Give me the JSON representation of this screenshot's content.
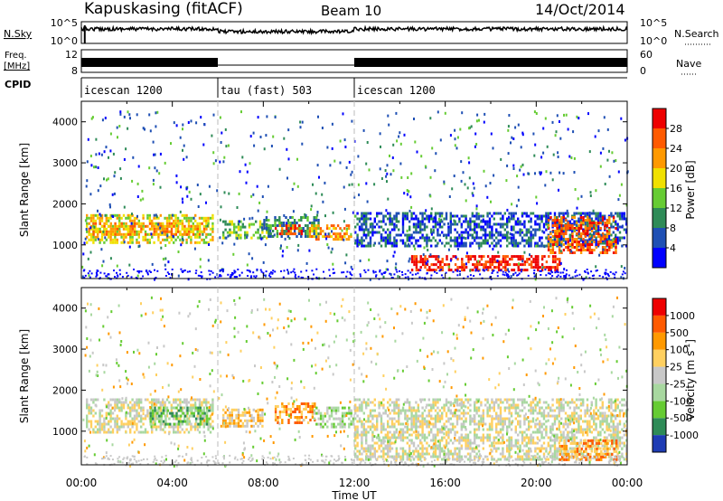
{
  "header": {
    "station": "Kapuskasing (fitACF)",
    "beam": "Beam 10",
    "date": "14/Oct/2014"
  },
  "nsky_panel": {
    "label": "N.Sky",
    "right_label": "N.Search",
    "left_ticks": [
      "10^5",
      "10^0"
    ],
    "right_ticks": [
      "10^5",
      "10^0"
    ]
  },
  "freq_panel": {
    "label_line1": "Freq.",
    "label_line2": "[MHz]",
    "left_ticks": [
      "12",
      "8"
    ],
    "right_ticks": [
      "60",
      "0"
    ],
    "right_label": "Nave"
  },
  "cpid_panel": {
    "label": "CPID",
    "segments": [
      {
        "name": "icescan 1200",
        "start_h": 0,
        "end_h": 6
      },
      {
        "name": "tau (fast) 503",
        "start_h": 6,
        "end_h": 12
      },
      {
        "name": "icescan 1200",
        "start_h": 12,
        "end_h": 24
      }
    ]
  },
  "x_axis": {
    "label": "Time UT",
    "ticks": [
      "00:00",
      "04:00",
      "08:00",
      "12:00",
      "16:00",
      "20:00",
      "00:00"
    ]
  },
  "power_panel": {
    "ylabel": "Slant Range [km]",
    "yticks": [
      "4000",
      "3000",
      "2000",
      "1000"
    ],
    "colorbar_label": "Power [dB]",
    "colorbar_ticks": [
      "28",
      "24",
      "20",
      "16",
      "12",
      "8",
      "4"
    ],
    "colors": [
      "#0000ff",
      "#1e4fb4",
      "#2e8b57",
      "#66cc33",
      "#f0e000",
      "#ff9900",
      "#ff5a00",
      "#ee0000"
    ]
  },
  "velocity_panel": {
    "ylabel": "Slant Range [km]",
    "yticks": [
      "4000",
      "3000",
      "2000",
      "1000"
    ],
    "colorbar_label": "Velocity [m s",
    "colorbar_label_sup": "-1",
    "colorbar_label_end": "]",
    "colorbar_ticks": [
      "1000",
      "500",
      "100",
      "25",
      "-25",
      "-100",
      "-500",
      "-1000"
    ],
    "colors": [
      "#1e3cb4",
      "#2e8b57",
      "#66cc33",
      "#a8d8a0",
      "#c8c8c8",
      "#ffd060",
      "#ff9900",
      "#ff5a00",
      "#ee0000"
    ]
  },
  "chart_data": {
    "type": "heatmap",
    "x_range_hours": [
      0,
      24
    ],
    "y_range_km": [
      180,
      4500
    ],
    "power_regions": [
      {
        "t0": 0.2,
        "t1": 5.8,
        "r0": 1050,
        "r1": 1750,
        "level": 4
      },
      {
        "t0": 0.3,
        "t1": 5.5,
        "r0": 1250,
        "r1": 1550,
        "level": 5
      },
      {
        "t0": 6.2,
        "t1": 8.2,
        "r0": 1150,
        "r1": 1600,
        "level": 3
      },
      {
        "t0": 8.0,
        "t1": 10.5,
        "r0": 1200,
        "r1": 1700,
        "level": 2
      },
      {
        "t0": 8.5,
        "t1": 9.7,
        "r0": 1300,
        "r1": 1500,
        "level": 6
      },
      {
        "t0": 10.0,
        "t1": 12.0,
        "r0": 1150,
        "r1": 1500,
        "level": 5
      },
      {
        "t0": 12.0,
        "t1": 24.0,
        "r0": 1000,
        "r1": 1800,
        "level": 1
      },
      {
        "t0": 14.5,
        "t1": 21.0,
        "r0": 400,
        "r1": 750,
        "level": 7
      },
      {
        "t0": 20.5,
        "t1": 23.5,
        "r0": 800,
        "r1": 1700,
        "level": 6
      }
    ],
    "velocity_regions": [
      {
        "t0": 0.2,
        "t1": 5.8,
        "r0": 1000,
        "r1": 1800,
        "level": 4
      },
      {
        "t0": 3.0,
        "t1": 5.6,
        "r0": 1200,
        "r1": 1600,
        "level": 2
      },
      {
        "t0": 6.2,
        "t1": 8.0,
        "r0": 1150,
        "r1": 1550,
        "level": 5
      },
      {
        "t0": 8.5,
        "t1": 10.3,
        "r0": 1200,
        "r1": 1700,
        "level": 6
      },
      {
        "t0": 10.2,
        "t1": 12.0,
        "r0": 1100,
        "r1": 1600,
        "level": 3
      },
      {
        "t0": 12.0,
        "t1": 24.0,
        "r0": 300,
        "r1": 1800,
        "level": 4
      },
      {
        "t0": 21.0,
        "t1": 23.5,
        "r0": 300,
        "r1": 800,
        "level": 6
      }
    ]
  }
}
